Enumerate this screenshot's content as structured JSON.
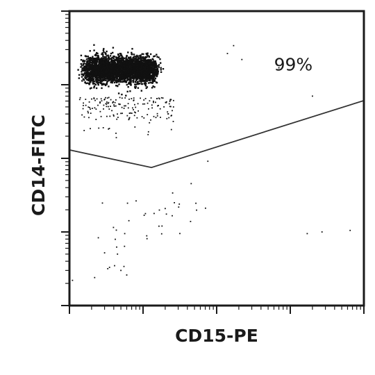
{
  "chart_data": {
    "type": "scatter",
    "title": "",
    "xlabel": "CD15-PE",
    "ylabel": "CD14-FITC",
    "x_scale": "log",
    "y_scale": "log",
    "xlim": [
      1,
      10000
    ],
    "ylim": [
      1,
      10000
    ],
    "x_decades": 4,
    "y_decades": 4,
    "tick_labels_shown": false,
    "grid": false,
    "colors": {
      "axis": "#1a1a1a",
      "points": "#111111",
      "gate": "#333333"
    },
    "gate": {
      "vertices": [
        [
          1,
          130
        ],
        [
          13,
          75
        ],
        [
          10000,
          610
        ]
      ],
      "closed_to_top": true
    },
    "annotations": [
      {
        "text": "99%",
        "x": 1100,
        "y": 1900
      }
    ],
    "populations": [
      {
        "name": "",
        "center": [
          5,
          1600
        ],
        "spread_decades": [
          0.3,
          0.09
        ],
        "count": 3200,
        "shape": "dense"
      },
      {
        "name": "",
        "center": [
          6,
          600
        ],
        "spread_decades": [
          0.4,
          0.2
        ],
        "count": 170,
        "shape": "halo"
      },
      {
        "name": "",
        "center": [
          13,
          15
        ],
        "spread_decades": [
          0.45,
          0.25
        ],
        "count": 38,
        "shape": "low"
      }
    ],
    "sparse_points": [
      [
        170,
        3400
      ],
      [
        220,
        2200
      ],
      [
        140,
        2650
      ],
      [
        700,
        1700
      ],
      [
        2000,
        700
      ],
      [
        1700,
        9.5
      ],
      [
        2700,
        10
      ],
      [
        6500,
        10.5
      ],
      [
        3,
        5.2
      ],
      [
        4.5,
        5
      ],
      [
        3.5,
        3.3
      ],
      [
        5.5,
        3.4
      ],
      [
        6,
        2.6
      ],
      [
        2.2,
        2.4
      ],
      [
        1.1,
        2.2
      ],
      [
        5,
        3
      ]
    ]
  }
}
